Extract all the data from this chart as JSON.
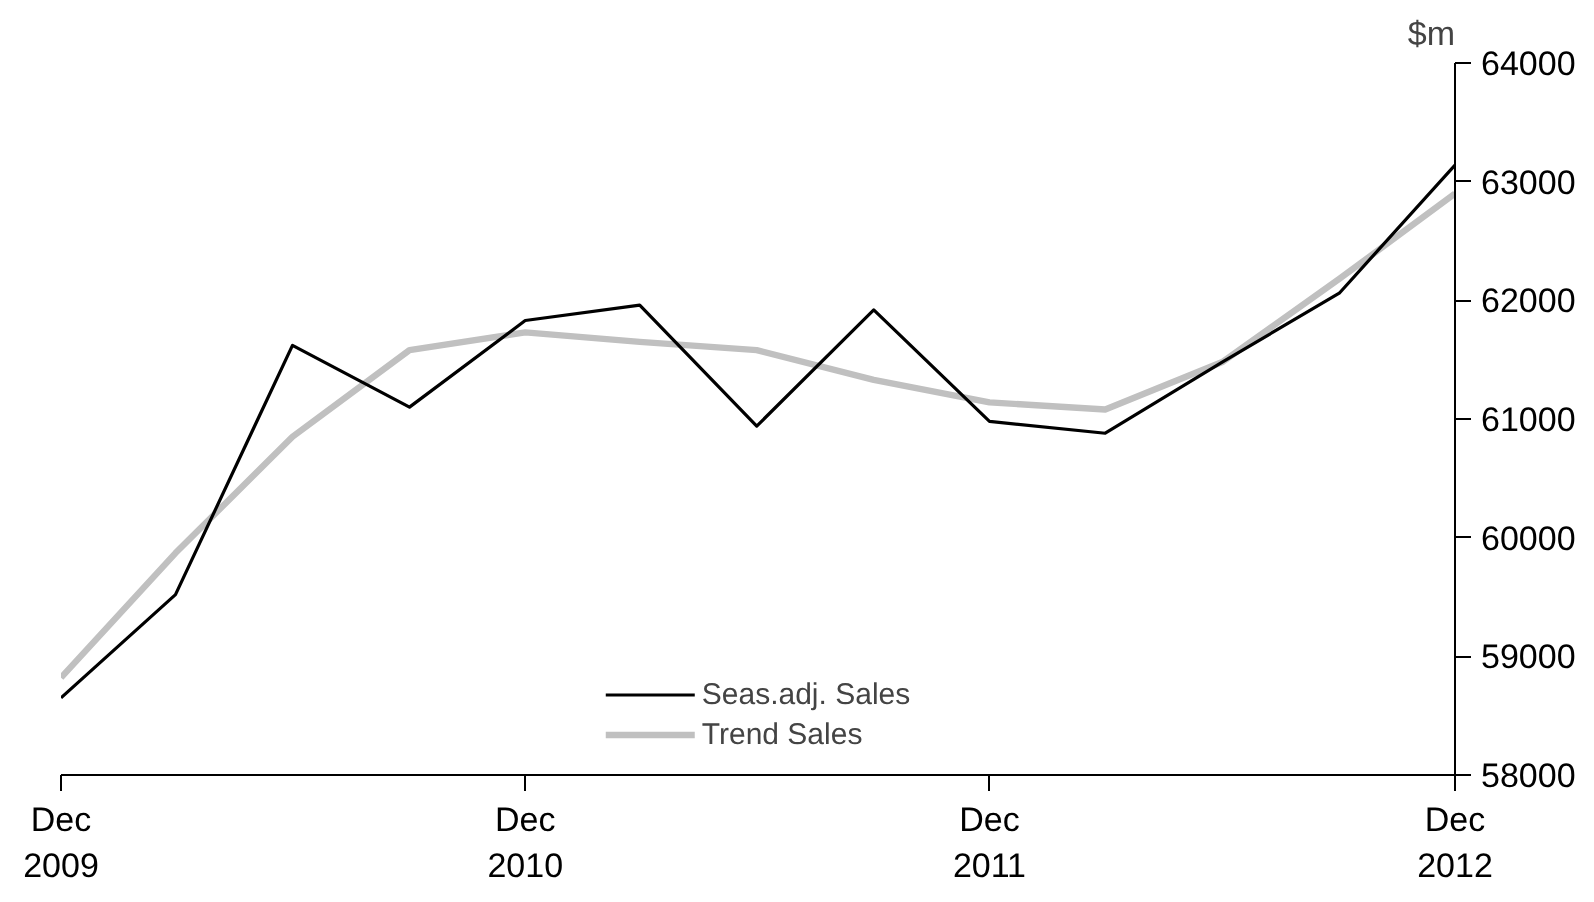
{
  "chart_data": {
    "type": "line",
    "ylabel": "$m",
    "x": [
      "2009-12",
      "2010-03",
      "2010-06",
      "2010-09",
      "2010-12",
      "2011-03",
      "2011-06",
      "2011-09",
      "2011-12",
      "2012-03",
      "2012-06",
      "2012-09",
      "2012-12"
    ],
    "series": [
      {
        "name": "Seas.adj. Sales",
        "color": "#000000",
        "values": [
          58650,
          59520,
          61620,
          61100,
          61830,
          61960,
          60940,
          61920,
          60980,
          60880,
          61480,
          62060,
          63140
        ]
      },
      {
        "name": "Trend Sales",
        "color": "#c0c0c0",
        "values": [
          58820,
          59870,
          60850,
          61580,
          61730,
          61650,
          61580,
          61330,
          61140,
          61080,
          61480,
          62180,
          62900
        ]
      }
    ],
    "xlim": [
      "2009-12",
      "2012-12"
    ],
    "xticks": [
      {
        "value": "2009-12",
        "label": "Dec\n2009"
      },
      {
        "value": "2010-12",
        "label": "Dec\n2010"
      },
      {
        "value": "2011-12",
        "label": "Dec\n2011"
      },
      {
        "value": "2012-12",
        "label": "Dec\n2012"
      }
    ],
    "ylim": [
      58000,
      64000
    ],
    "yticks": [
      58000,
      59000,
      60000,
      61000,
      62000,
      63000,
      64000
    ],
    "grid": false,
    "legend": "bottom",
    "marker": "none",
    "line_style": "solid"
  }
}
